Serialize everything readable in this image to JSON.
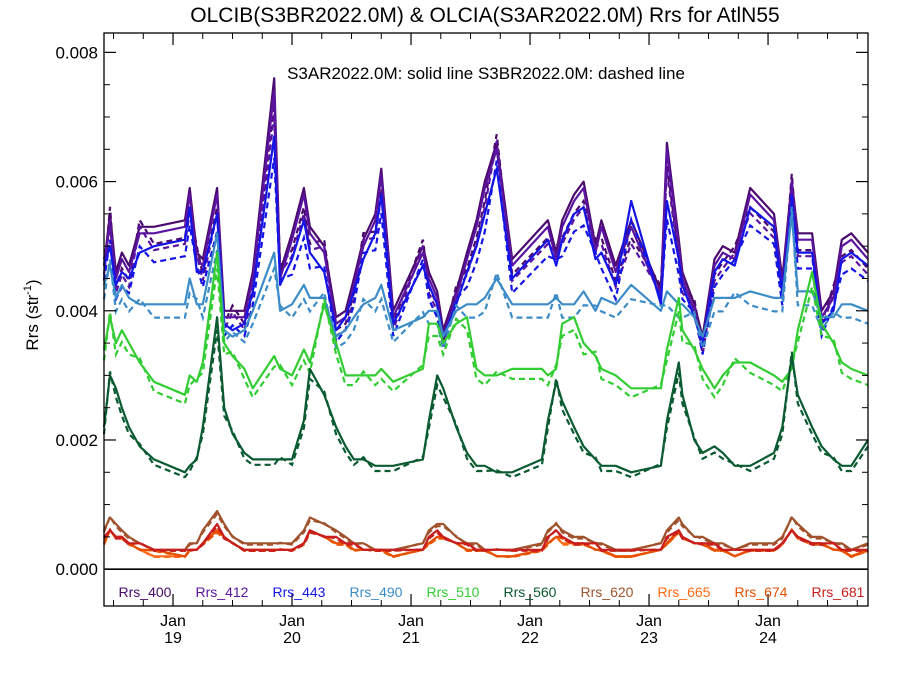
{
  "chart_data": {
    "type": "line",
    "title": "OLCIB(S3BR2022.0M) & OLCIA(S3AR2022.0M)  Rrs for AtlN55",
    "subtitle": "S3AR2022.0M: solid line   S3BR2022.0M: dashed line",
    "ylabel": "Rrs (str",
    "ylabel_sup": "-1",
    "ylabel_end": ")",
    "ylim": [
      -0.00057,
      0.0083
    ],
    "xlim": [
      18.42,
      24.84
    ],
    "yticks": [
      0.0,
      0.002,
      0.004,
      0.006,
      0.008
    ],
    "ytick_labels": [
      "0.000",
      "0.002",
      "0.004",
      "0.006",
      "0.008"
    ],
    "xticks": [
      {
        "x": 19,
        "month": "Jan",
        "day": "19"
      },
      {
        "x": 20,
        "month": "Jan",
        "day": "20"
      },
      {
        "x": 21,
        "month": "Jan",
        "day": "21"
      },
      {
        "x": 22,
        "month": "Jan",
        "day": "22"
      },
      {
        "x": 23,
        "month": "Jan",
        "day": "23"
      },
      {
        "x": 24,
        "month": "Jan",
        "day": "24"
      }
    ],
    "x": [
      18.42,
      18.47,
      18.52,
      18.57,
      18.63,
      18.72,
      18.84,
      19.1,
      19.14,
      19.2,
      19.25,
      19.37,
      19.43,
      19.5,
      19.6,
      19.67,
      19.85,
      19.9,
      20.0,
      20.1,
      20.15,
      20.27,
      20.37,
      20.45,
      20.52,
      20.6,
      20.7,
      20.75,
      20.85,
      21.1,
      21.15,
      21.22,
      21.27,
      21.38,
      21.47,
      21.55,
      21.62,
      21.72,
      21.85,
      22.1,
      22.15,
      22.22,
      22.27,
      22.37,
      22.45,
      22.55,
      22.6,
      22.72,
      22.85,
      23.1,
      23.15,
      23.25,
      23.28,
      23.38,
      23.45,
      23.55,
      23.62,
      23.72,
      23.85,
      24.05,
      24.12,
      24.2,
      24.25,
      24.37,
      24.45,
      24.55,
      24.62,
      24.7,
      24.84
    ],
    "series": [
      {
        "name": "Rrs_400",
        "color": "#4b0a6e",
        "values": [
          0.0047,
          0.0055,
          0.0046,
          0.0049,
          0.0047,
          0.0053,
          0.0053,
          0.0054,
          0.0059,
          0.0049,
          0.0048,
          0.0059,
          0.004,
          0.004,
          0.004,
          0.0046,
          0.0076,
          0.0046,
          0.0052,
          0.0059,
          0.0053,
          0.005,
          0.0039,
          0.004,
          0.0045,
          0.0051,
          0.0055,
          0.0062,
          0.004,
          0.005,
          0.0046,
          0.0043,
          0.0037,
          0.0043,
          0.0049,
          0.0054,
          0.006,
          0.0066,
          0.0048,
          0.0053,
          0.0054,
          0.0049,
          0.0054,
          0.0058,
          0.006,
          0.005,
          0.0054,
          0.0047,
          0.0054,
          0.0043,
          0.0066,
          0.0051,
          0.0046,
          0.0041,
          0.0036,
          0.0048,
          0.005,
          0.0049,
          0.0059,
          0.0055,
          0.0045,
          0.006,
          0.0052,
          0.0052,
          0.004,
          0.0043,
          0.0051,
          0.0052,
          0.0049
        ]
      },
      {
        "name": "Rrs_412",
        "color": "#5a14a0",
        "values": [
          0.0048,
          0.0053,
          0.0045,
          0.0048,
          0.0046,
          0.0052,
          0.0052,
          0.0053,
          0.0058,
          0.0048,
          0.0047,
          0.0058,
          0.0039,
          0.0039,
          0.0039,
          0.0045,
          0.0074,
          0.0045,
          0.0051,
          0.0058,
          0.0052,
          0.0049,
          0.0038,
          0.0039,
          0.0044,
          0.005,
          0.0054,
          0.0061,
          0.0039,
          0.0049,
          0.0045,
          0.0042,
          0.0036,
          0.0042,
          0.0048,
          0.0053,
          0.0059,
          0.0065,
          0.0047,
          0.0052,
          0.0053,
          0.0048,
          0.0053,
          0.0057,
          0.0059,
          0.0049,
          0.0053,
          0.0046,
          0.0053,
          0.0042,
          0.0065,
          0.005,
          0.0045,
          0.004,
          0.0035,
          0.0047,
          0.0049,
          0.0048,
          0.0058,
          0.0054,
          0.0044,
          0.0059,
          0.0051,
          0.0051,
          0.0039,
          0.0042,
          0.005,
          0.0051,
          0.0048
        ]
      },
      {
        "name": "Rrs_443",
        "color": "#1414e6",
        "values": [
          0.0047,
          0.005,
          0.0044,
          0.0046,
          0.0045,
          0.0049,
          0.005,
          0.0051,
          0.0056,
          0.0046,
          0.0046,
          0.0055,
          0.0038,
          0.0037,
          0.0038,
          0.0043,
          0.0067,
          0.0044,
          0.0048,
          0.0054,
          0.0049,
          0.0046,
          0.0037,
          0.0039,
          0.0043,
          0.0048,
          0.0052,
          0.0058,
          0.0038,
          0.0047,
          0.0044,
          0.0041,
          0.0036,
          0.0041,
          0.0046,
          0.005,
          0.0055,
          0.0062,
          0.0045,
          0.005,
          0.0051,
          0.0047,
          0.0051,
          0.0055,
          0.0056,
          0.0048,
          0.0049,
          0.0044,
          0.0057,
          0.0041,
          0.0057,
          0.0048,
          0.0044,
          0.0039,
          0.0035,
          0.0046,
          0.0048,
          0.0047,
          0.0056,
          0.0053,
          0.0043,
          0.0057,
          0.0049,
          0.0049,
          0.0038,
          0.004,
          0.0048,
          0.0049,
          0.0047
        ]
      },
      {
        "name": "Rrs_490",
        "color": "#3c8cc8",
        "values": [
          0.0044,
          0.0047,
          0.0042,
          0.0044,
          0.0042,
          0.0041,
          0.0041,
          0.0041,
          0.0045,
          0.0041,
          0.0041,
          0.0052,
          0.0037,
          0.0036,
          0.0037,
          0.004,
          0.0049,
          0.004,
          0.0041,
          0.0044,
          0.0042,
          0.0042,
          0.0036,
          0.0037,
          0.0039,
          0.0041,
          0.0042,
          0.0044,
          0.0037,
          0.0039,
          0.004,
          0.004,
          0.0036,
          0.004,
          0.0041,
          0.0041,
          0.0042,
          0.0045,
          0.0041,
          0.0041,
          0.0041,
          0.0042,
          0.0041,
          0.0041,
          0.0043,
          0.004,
          0.0042,
          0.0041,
          0.0044,
          0.004,
          0.0043,
          0.0041,
          0.0041,
          0.0039,
          0.0036,
          0.0042,
          0.0042,
          0.0042,
          0.0043,
          0.0042,
          0.0042,
          0.0055,
          0.0043,
          0.0043,
          0.0039,
          0.0039,
          0.0041,
          0.0041,
          0.004
        ]
      },
      {
        "name": "Rrs_510",
        "color": "#32cd32",
        "values": [
          0.0034,
          0.0039,
          0.0035,
          0.0037,
          0.0035,
          0.0032,
          0.0029,
          0.0027,
          0.003,
          0.0029,
          0.0032,
          0.0049,
          0.0035,
          0.0033,
          0.0031,
          0.0028,
          0.0033,
          0.0031,
          0.003,
          0.0034,
          0.0032,
          0.0041,
          0.0035,
          0.003,
          0.003,
          0.003,
          0.003,
          0.0031,
          0.0029,
          0.0031,
          0.0038,
          0.0038,
          0.0035,
          0.0038,
          0.0039,
          0.0031,
          0.003,
          0.003,
          0.0031,
          0.0031,
          0.003,
          0.0031,
          0.0038,
          0.0039,
          0.0035,
          0.0033,
          0.0031,
          0.003,
          0.0028,
          0.0028,
          0.0034,
          0.0042,
          0.0037,
          0.0034,
          0.0031,
          0.0028,
          0.003,
          0.0032,
          0.0032,
          0.003,
          0.0029,
          0.0031,
          0.0037,
          0.0046,
          0.0038,
          0.0035,
          0.0032,
          0.0031,
          0.003
        ]
      },
      {
        "name": "Rrs_560",
        "color": "#0a5a32",
        "values": [
          0.0022,
          0.003,
          0.0028,
          0.0025,
          0.0022,
          0.0019,
          0.0017,
          0.0015,
          0.0016,
          0.0017,
          0.0022,
          0.0039,
          0.0025,
          0.0021,
          0.0018,
          0.0017,
          0.0017,
          0.0017,
          0.0017,
          0.0023,
          0.0031,
          0.0027,
          0.0022,
          0.0019,
          0.0017,
          0.0017,
          0.0016,
          0.0016,
          0.0016,
          0.0017,
          0.0023,
          0.003,
          0.0028,
          0.0022,
          0.0018,
          0.0016,
          0.0016,
          0.0015,
          0.0015,
          0.0017,
          0.0023,
          0.0029,
          0.0026,
          0.0022,
          0.0019,
          0.0017,
          0.0016,
          0.0016,
          0.0015,
          0.0016,
          0.0023,
          0.0032,
          0.0027,
          0.002,
          0.0018,
          0.0019,
          0.0018,
          0.0016,
          0.0016,
          0.0018,
          0.0022,
          0.0033,
          0.0027,
          0.0022,
          0.0019,
          0.0017,
          0.0016,
          0.0016,
          0.002
        ]
      },
      {
        "name": "Rrs_620",
        "color": "#a0522d",
        "values": [
          0.0006,
          0.0008,
          0.0007,
          0.0006,
          0.0005,
          0.0004,
          0.0003,
          0.0003,
          0.0004,
          0.0004,
          0.0006,
          0.0009,
          0.0007,
          0.0005,
          0.0004,
          0.0004,
          0.0004,
          0.0004,
          0.0004,
          0.0006,
          0.0008,
          0.0007,
          0.0006,
          0.0005,
          0.0004,
          0.0004,
          0.0003,
          0.0003,
          0.0003,
          0.0004,
          0.0006,
          0.0007,
          0.0007,
          0.0005,
          0.0004,
          0.0004,
          0.0003,
          0.0003,
          0.0003,
          0.0004,
          0.0006,
          0.0007,
          0.0006,
          0.0005,
          0.0005,
          0.0004,
          0.0004,
          0.0003,
          0.0003,
          0.0004,
          0.0006,
          0.0008,
          0.0007,
          0.0005,
          0.0005,
          0.0004,
          0.0004,
          0.0003,
          0.0004,
          0.0004,
          0.0005,
          0.0008,
          0.0007,
          0.0005,
          0.0005,
          0.0004,
          0.0004,
          0.0003,
          0.0004
        ]
      },
      {
        "name": "Rrs_665",
        "color": "#ff6a14",
        "values": [
          0.0004,
          0.0006,
          0.0005,
          0.0005,
          0.0004,
          0.0003,
          0.0002,
          0.0002,
          0.0003,
          0.0003,
          0.0004,
          0.0006,
          0.0005,
          0.0004,
          0.0003,
          0.0003,
          0.0003,
          0.0003,
          0.0003,
          0.0004,
          0.0006,
          0.0005,
          0.0004,
          0.0004,
          0.0003,
          0.0003,
          0.0003,
          0.0003,
          0.0002,
          0.0003,
          0.0004,
          0.0005,
          0.0005,
          0.0004,
          0.0003,
          0.0003,
          0.0003,
          0.0002,
          0.0002,
          0.0003,
          0.0004,
          0.0005,
          0.0004,
          0.0004,
          0.0004,
          0.0003,
          0.0003,
          0.0002,
          0.0002,
          0.0003,
          0.0004,
          0.0006,
          0.0005,
          0.0004,
          0.0004,
          0.0003,
          0.0003,
          0.0002,
          0.0003,
          0.0003,
          0.0004,
          0.0006,
          0.0005,
          0.0004,
          0.0004,
          0.0003,
          0.0003,
          0.0002,
          0.0003
        ]
      },
      {
        "name": "Rrs_674",
        "color": "#e65000",
        "values": [
          0.0004,
          0.0006,
          0.0005,
          0.0005,
          0.0004,
          0.0003,
          0.0003,
          0.0002,
          0.0003,
          0.0003,
          0.0004,
          0.0006,
          0.0005,
          0.0004,
          0.0003,
          0.0003,
          0.0003,
          0.0003,
          0.0003,
          0.0004,
          0.0006,
          0.0005,
          0.0004,
          0.0004,
          0.0003,
          0.0003,
          0.0003,
          0.0003,
          0.0002,
          0.0003,
          0.0004,
          0.0005,
          0.0005,
          0.0004,
          0.0003,
          0.0003,
          0.0003,
          0.0002,
          0.0002,
          0.0003,
          0.0004,
          0.0005,
          0.0005,
          0.0004,
          0.0004,
          0.0003,
          0.0003,
          0.0002,
          0.0002,
          0.0003,
          0.0004,
          0.0006,
          0.0005,
          0.0004,
          0.0004,
          0.0003,
          0.0003,
          0.0002,
          0.0003,
          0.0003,
          0.0004,
          0.0006,
          0.0005,
          0.0004,
          0.0004,
          0.0003,
          0.0003,
          0.0002,
          0.0003
        ]
      },
      {
        "name": "Rrs_681",
        "color": "#c81e1e",
        "values": [
          0.0005,
          0.0006,
          0.0005,
          0.0005,
          0.0004,
          0.0004,
          0.0003,
          0.0003,
          0.0003,
          0.0003,
          0.0004,
          0.0007,
          0.0005,
          0.0004,
          0.0003,
          0.0003,
          0.0003,
          0.0003,
          0.0003,
          0.0004,
          0.0006,
          0.0005,
          0.0005,
          0.0004,
          0.0004,
          0.0003,
          0.0003,
          0.0003,
          0.0003,
          0.0003,
          0.0005,
          0.0006,
          0.0005,
          0.0004,
          0.0004,
          0.0003,
          0.0003,
          0.0003,
          0.0003,
          0.0003,
          0.0005,
          0.0006,
          0.0005,
          0.0004,
          0.0004,
          0.0004,
          0.0003,
          0.0003,
          0.0003,
          0.0003,
          0.0005,
          0.0006,
          0.0005,
          0.0004,
          0.0004,
          0.0004,
          0.0003,
          0.0003,
          0.0003,
          0.0003,
          0.0004,
          0.0006,
          0.0005,
          0.0004,
          0.0004,
          0.0004,
          0.0003,
          0.0003,
          0.0003
        ]
      }
    ]
  }
}
